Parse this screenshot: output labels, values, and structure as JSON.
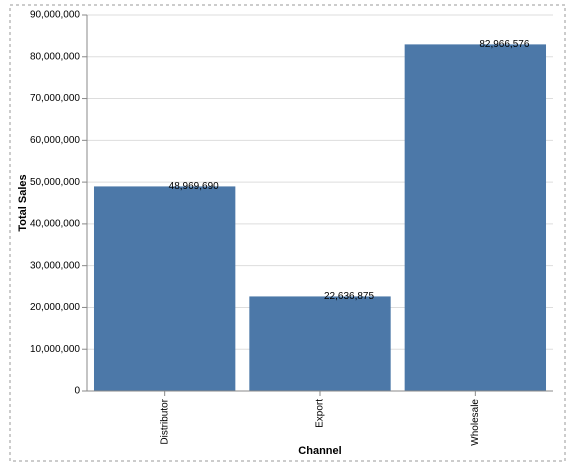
{
  "chart_data": {
    "type": "bar",
    "x_label": "Channel",
    "y_label": "Total Sales",
    "categories": [
      "Distributor",
      "Export",
      "Wholesale"
    ],
    "values": [
      48969690,
      22636875,
      82966576
    ],
    "value_labels": [
      "48,969,690",
      "22,636,875",
      "82,966,576"
    ],
    "color": "#4c78a8",
    "ylim": [
      0,
      90000000
    ],
    "yticks": [
      0,
      {
        "value": 10000000,
        "label": "10,000,000"
      },
      {
        "value": 20000000,
        "label": "20,000,000"
      },
      {
        "value": 30000000,
        "label": "30,000,000"
      },
      {
        "value": 40000000,
        "label": "40,000,000"
      },
      {
        "value": 50000000,
        "label": "50,000,000"
      },
      {
        "value": 60000000,
        "label": "60,000,000"
      },
      {
        "value": 70000000,
        "label": "70,000,000"
      },
      {
        "value": 80000000,
        "label": "80,000,000"
      },
      {
        "value": 90000000,
        "label": "90,000,000"
      }
    ],
    "grid": true
  }
}
